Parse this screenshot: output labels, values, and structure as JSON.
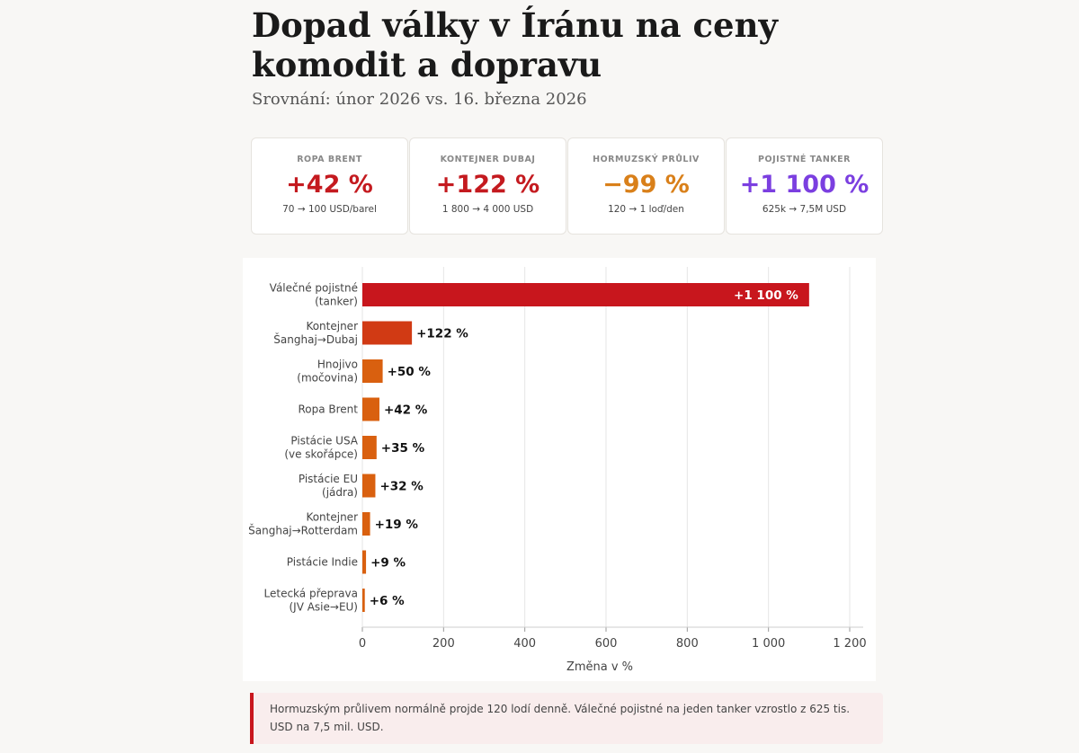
{
  "title": "Dopad války v Íránu na ceny komodit a dopravu",
  "subtitle": "Srovnání: únor 2026 vs. 16. března 2026",
  "cards": [
    {
      "label": "ROPA BRENT",
      "value": "+42 %",
      "detail": "70 → 100 USD/barel",
      "color": "#c41a1f"
    },
    {
      "label": "KONTEJNER DUBAJ",
      "value": "+122 %",
      "detail": "1 800 → 4 000 USD",
      "color": "#c41a1f"
    },
    {
      "label": "HORMUZSKÝ PRŮLIV",
      "value": "−99 %",
      "detail": "120 → 1 loď/den",
      "color": "#d9801a"
    },
    {
      "label": "POJISTNÉ TANKER",
      "value": "+1 100 %",
      "detail": "625k → 7,5M USD",
      "color": "#7b3fe0"
    }
  ],
  "chart_data": {
    "type": "bar",
    "orientation": "horizontal",
    "categories": [
      [
        "Válečné pojistné",
        "(tanker)"
      ],
      [
        "Kontejner",
        "Šanghaj→Dubaj"
      ],
      [
        "Hnojivo",
        "(močovina)"
      ],
      [
        "Ropa Brent"
      ],
      [
        "Pistácie USA",
        "(ve skořápce)"
      ],
      [
        "Pistácie EU",
        "(jádra)"
      ],
      [
        "Kontejner",
        "Šanghaj→Rotterdam"
      ],
      [
        "Pistácie Indie"
      ],
      [
        "Letecká přeprava",
        "(JV Asie→EU)"
      ]
    ],
    "values": [
      1100,
      122,
      50,
      42,
      35,
      32,
      19,
      9,
      6
    ],
    "value_labels": [
      "+1 100 %",
      "+122 %",
      "+50 %",
      "+42 %",
      "+35 %",
      "+32 %",
      "+19 %",
      "+9 %",
      "+6 %"
    ],
    "colors": [
      "#c8161d",
      "#d13a14",
      "#d9600f",
      "#d9600f",
      "#d9600f",
      "#d9600f",
      "#d9600f",
      "#d9600f",
      "#d9600f"
    ],
    "xlim": [
      0,
      1230
    ],
    "xticks": [
      0,
      200,
      400,
      600,
      800,
      1000,
      1200
    ],
    "xtick_labels": [
      "0",
      "200",
      "400",
      "600",
      "800",
      "1 000",
      "1 200"
    ],
    "xlabel": "Změna v %",
    "grid": true
  },
  "note": "Hormuzským průlivem normálně projde 120 lodí denně. Válečné pojistné na jeden tanker vzrostlo z 625 tis. USD na 7,5 mil. USD."
}
